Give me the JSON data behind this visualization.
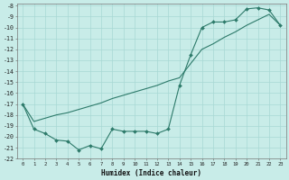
{
  "xlabel": "Humidex (Indice chaleur)",
  "x": [
    0,
    1,
    2,
    3,
    4,
    5,
    6,
    7,
    8,
    9,
    10,
    11,
    12,
    13,
    14,
    15,
    16,
    17,
    18,
    19,
    20,
    21,
    22,
    23
  ],
  "y_jagged": [
    -17.0,
    -19.3,
    -19.7,
    -20.3,
    -20.4,
    -21.2,
    -20.8,
    -21.1,
    -19.3,
    -19.5,
    -19.5,
    -19.5,
    -19.7,
    -19.3,
    -15.3,
    -12.5,
    -10.0,
    -9.5,
    -9.5,
    -9.3,
    -8.3,
    -8.2,
    -8.4,
    -9.8
  ],
  "x_diag": [
    0,
    1,
    2,
    3,
    4,
    5,
    6,
    7,
    8,
    9,
    10,
    11,
    12,
    13,
    14,
    15,
    16,
    17,
    18,
    19,
    20,
    21,
    22,
    23
  ],
  "y_diag": [
    -17.0,
    -18.6,
    -18.3,
    -18.0,
    -17.8,
    -17.5,
    -17.2,
    -16.9,
    -16.5,
    -16.2,
    -15.9,
    -15.6,
    -15.3,
    -14.9,
    -14.6,
    -13.3,
    -12.0,
    -11.5,
    -10.9,
    -10.4,
    -9.8,
    -9.3,
    -8.8,
    -9.8
  ],
  "line_color": "#2d7a6a",
  "bg_color": "#c8ece8",
  "grid_color": "#a8d8d4",
  "ylim": [
    -22,
    -8
  ],
  "xlim": [
    -0.5,
    23.5
  ],
  "yticks": [
    -8,
    -9,
    -10,
    -11,
    -12,
    -13,
    -14,
    -15,
    -16,
    -17,
    -18,
    -19,
    -20,
    -21,
    -22
  ],
  "xticks": [
    0,
    1,
    2,
    3,
    4,
    5,
    6,
    7,
    8,
    9,
    10,
    11,
    12,
    13,
    14,
    15,
    16,
    17,
    18,
    19,
    20,
    21,
    22,
    23
  ]
}
